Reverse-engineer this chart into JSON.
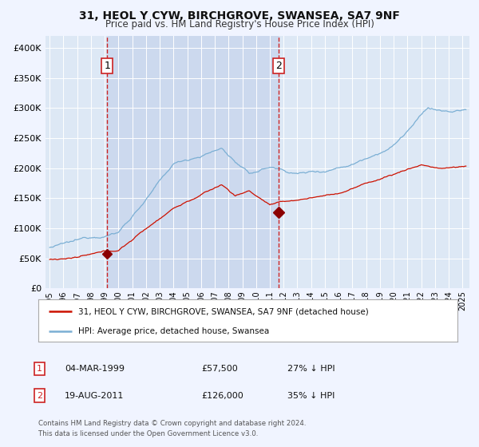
{
  "title": "31, HEOL Y CYW, BIRCHGROVE, SWANSEA, SA7 9NF",
  "subtitle": "Price paid vs. HM Land Registry's House Price Index (HPI)",
  "ylim": [
    0,
    420000
  ],
  "yticks": [
    0,
    50000,
    100000,
    150000,
    200000,
    250000,
    300000,
    350000,
    400000
  ],
  "ytick_labels": [
    "£0",
    "£50K",
    "£100K",
    "£150K",
    "£200K",
    "£250K",
    "£300K",
    "£350K",
    "£400K"
  ],
  "xlim_start": 1994.7,
  "xlim_end": 2025.5,
  "background_color": "#f0f4ff",
  "plot_bg_color": "#dde8f5",
  "grid_color": "#ffffff",
  "hpi_color": "#7bafd4",
  "price_color": "#cc1100",
  "marker_color": "#8b0000",
  "vline_color": "#cc2222",
  "shade_color": "#ccd9ee",
  "ann1_x": 1999.18,
  "ann1_y": 57500,
  "ann2_x": 2011.63,
  "ann2_y": 126000,
  "legend_label_price": "31, HEOL Y CYW, BIRCHGROVE, SWANSEA, SA7 9NF (detached house)",
  "legend_label_hpi": "HPI: Average price, detached house, Swansea",
  "footnote1": "Contains HM Land Registry data © Crown copyright and database right 2024.",
  "footnote2": "This data is licensed under the Open Government Licence v3.0.",
  "table_row1": [
    "1",
    "04-MAR-1999",
    "£57,500",
    "27% ↓ HPI"
  ],
  "table_row2": [
    "2",
    "19-AUG-2011",
    "£126,000",
    "35% ↓ HPI"
  ]
}
